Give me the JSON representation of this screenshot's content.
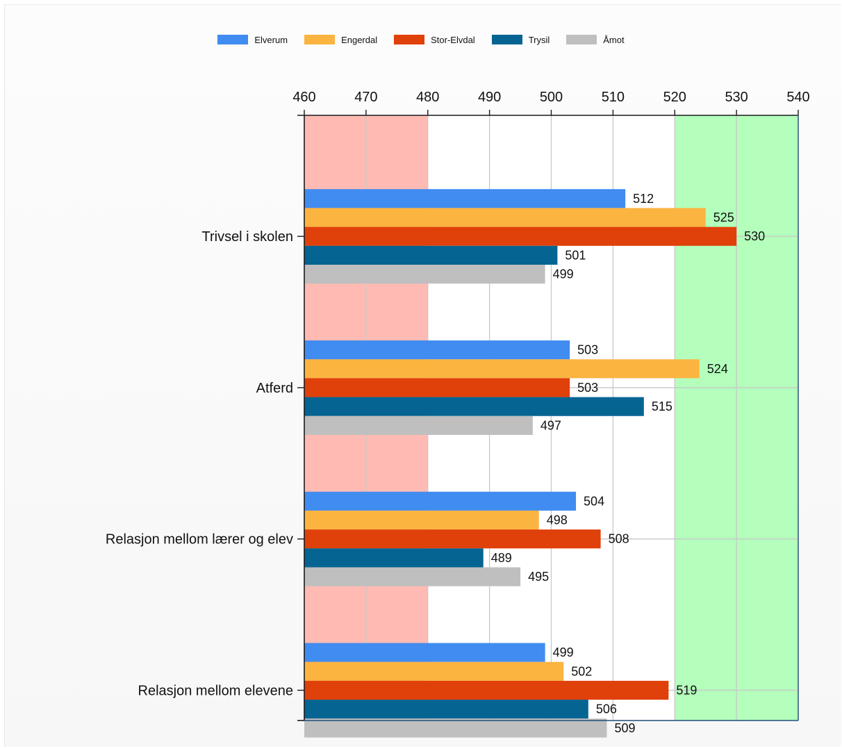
{
  "chart_data": {
    "type": "bar",
    "orientation": "horizontal",
    "categories": [
      "Trivsel i skolen",
      "Atferd",
      "Relasjon mellom lærer og elev",
      "Relasjon mellom elevene"
    ],
    "series": [
      {
        "name": "Elverum",
        "color": "#418CF0",
        "values": [
          512,
          503,
          504,
          499
        ]
      },
      {
        "name": "Engerdal",
        "color": "#FCB441",
        "values": [
          525,
          524,
          498,
          502
        ]
      },
      {
        "name": "Stor-Elvdal",
        "color": "#E0400A",
        "values": [
          530,
          503,
          508,
          519
        ]
      },
      {
        "name": "Trysil",
        "color": "#056492",
        "values": [
          501,
          515,
          489,
          506
        ]
      },
      {
        "name": "Åmot",
        "color": "#BFBFBF",
        "values": [
          499,
          497,
          495,
          509
        ]
      }
    ],
    "xlim": [
      460,
      540
    ],
    "x_ticks": [
      "460",
      "470",
      "480",
      "490",
      "500",
      "510",
      "520",
      "530",
      "540"
    ],
    "bands": [
      {
        "from": 460,
        "to": 480,
        "color": "#FFBBB3"
      },
      {
        "from": 520,
        "to": 540,
        "color": "#B3FFBB"
      }
    ],
    "grid": true,
    "legend_position": "top"
  }
}
